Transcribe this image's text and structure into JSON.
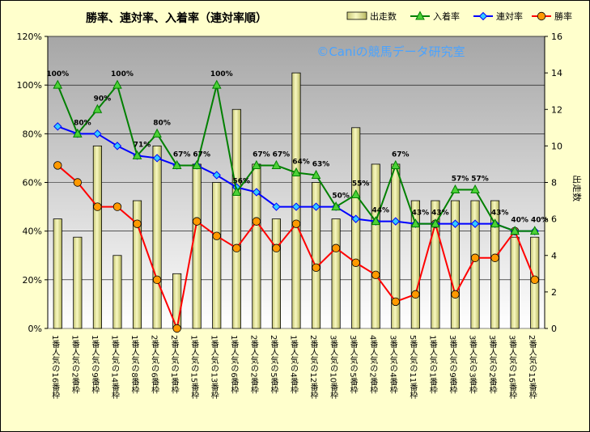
{
  "chart_data": {
    "type": "bar",
    "title": "勝率、連対率、入着率（連対率順）",
    "watermark": "©Caniの競馬データ研究室",
    "y2label": "出走数",
    "ylim_left": [
      0,
      120
    ],
    "ylim_right": [
      0,
      16
    ],
    "left_ticks": [
      "0%",
      "20%",
      "40%",
      "60%",
      "80%",
      "100%",
      "120%"
    ],
    "right_ticks": [
      "0",
      "2",
      "4",
      "6",
      "8",
      "10",
      "12",
      "14",
      "16"
    ],
    "legend_position": "top-right",
    "categories": [
      "1番人気の16番枠",
      "1番人気の2番枠",
      "1番人気の9番枠",
      "1番人気の14番枠",
      "1番人気の8番枠",
      "2番人気の6番枠",
      "2番人気の1番枠",
      "1番人気の15番枠",
      "1番人気の13番枠",
      "1番人気の6番枠",
      "2番人気の2番枠",
      "2番人気の5番枠",
      "1番人気の4番枠",
      "2番人気の12番枠",
      "3番人気の10番枠",
      "3番人気の5番枠",
      "4番人気の2番枠",
      "3番人気の4番枠",
      "5番人気の11番枠",
      "1番人気の1番枠",
      "3番人気の9番枠",
      "3番人気の3番枠",
      "3番人気の2番枠",
      "3番人気の16番枠",
      "2番人気の15番枠"
    ],
    "series": [
      {
        "name": "出走数",
        "kind": "bar",
        "axis": "right",
        "color": "#e6e699",
        "values": [
          6,
          5,
          10,
          4,
          7,
          10,
          3,
          9,
          8,
          12,
          9,
          6,
          14,
          8,
          6,
          11,
          9,
          9,
          7,
          7,
          7,
          7,
          7,
          5,
          5
        ]
      },
      {
        "name": "入着率",
        "kind": "line",
        "axis": "left",
        "color": "#008000",
        "marker": "triangle",
        "values": [
          100,
          80,
          90,
          100,
          71,
          80,
          67,
          67,
          100,
          56,
          67,
          67,
          64,
          63,
          50,
          55,
          44,
          67,
          43,
          43,
          57,
          57,
          43,
          40,
          40
        ],
        "labels": [
          "100%",
          "80%",
          "90%",
          "100%",
          "71%",
          "80%",
          "67%",
          "67%",
          "100%",
          "56%",
          "67%",
          "67%",
          "64%",
          "63%",
          "50%",
          "55%",
          "44%",
          "67%",
          "43%",
          "43%",
          "57%",
          "57%",
          "43%",
          "40%",
          "40%"
        ]
      },
      {
        "name": "連対率",
        "kind": "line",
        "axis": "left",
        "color": "#0000ff",
        "marker": "diamond",
        "values": [
          83,
          80,
          80,
          75,
          71,
          70,
          67,
          67,
          63,
          58,
          56,
          50,
          50,
          50,
          50,
          45,
          44,
          44,
          43,
          43,
          43,
          43,
          43,
          40,
          40
        ]
      },
      {
        "name": "勝率",
        "kind": "line",
        "axis": "left",
        "color": "#ff0000",
        "marker": "circle",
        "values": [
          67,
          60,
          50,
          50,
          43,
          20,
          0,
          44,
          38,
          33,
          44,
          33,
          43,
          25,
          33,
          27,
          22,
          11,
          14,
          43,
          14,
          29,
          29,
          40,
          20
        ]
      }
    ]
  }
}
